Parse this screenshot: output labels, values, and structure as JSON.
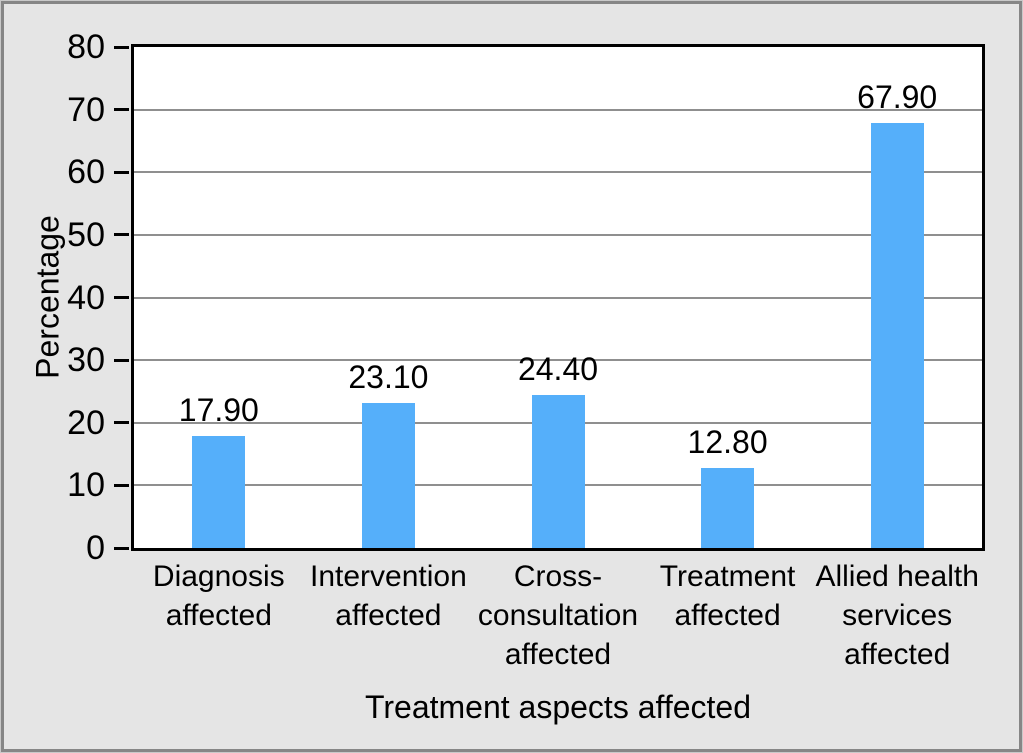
{
  "chart_data": {
    "type": "bar",
    "categories": [
      "Diagnosis\naffected",
      "Intervention\naffected",
      "Cross-\nconsultation\naffected",
      "Treatment\naffected",
      "Allied health\nservices\naffected"
    ],
    "values": [
      17.9,
      23.1,
      24.4,
      12.8,
      67.9
    ],
    "data_labels": [
      "17.90",
      "23.10",
      "24.40",
      "12.80",
      "67.90"
    ],
    "xlabel": "Treatment aspects affected",
    "ylabel": "Percentage",
    "ylim": [
      0,
      80
    ],
    "yticks": [
      0,
      10,
      20,
      30,
      40,
      50,
      60,
      70,
      80
    ],
    "grid": true,
    "legend": false,
    "bar_color": "#55affa",
    "plot_background": "#ffffff",
    "figure_background": "#e5e5e5",
    "gridline_color": "#8f8f8f",
    "axis_color": "#000000"
  }
}
